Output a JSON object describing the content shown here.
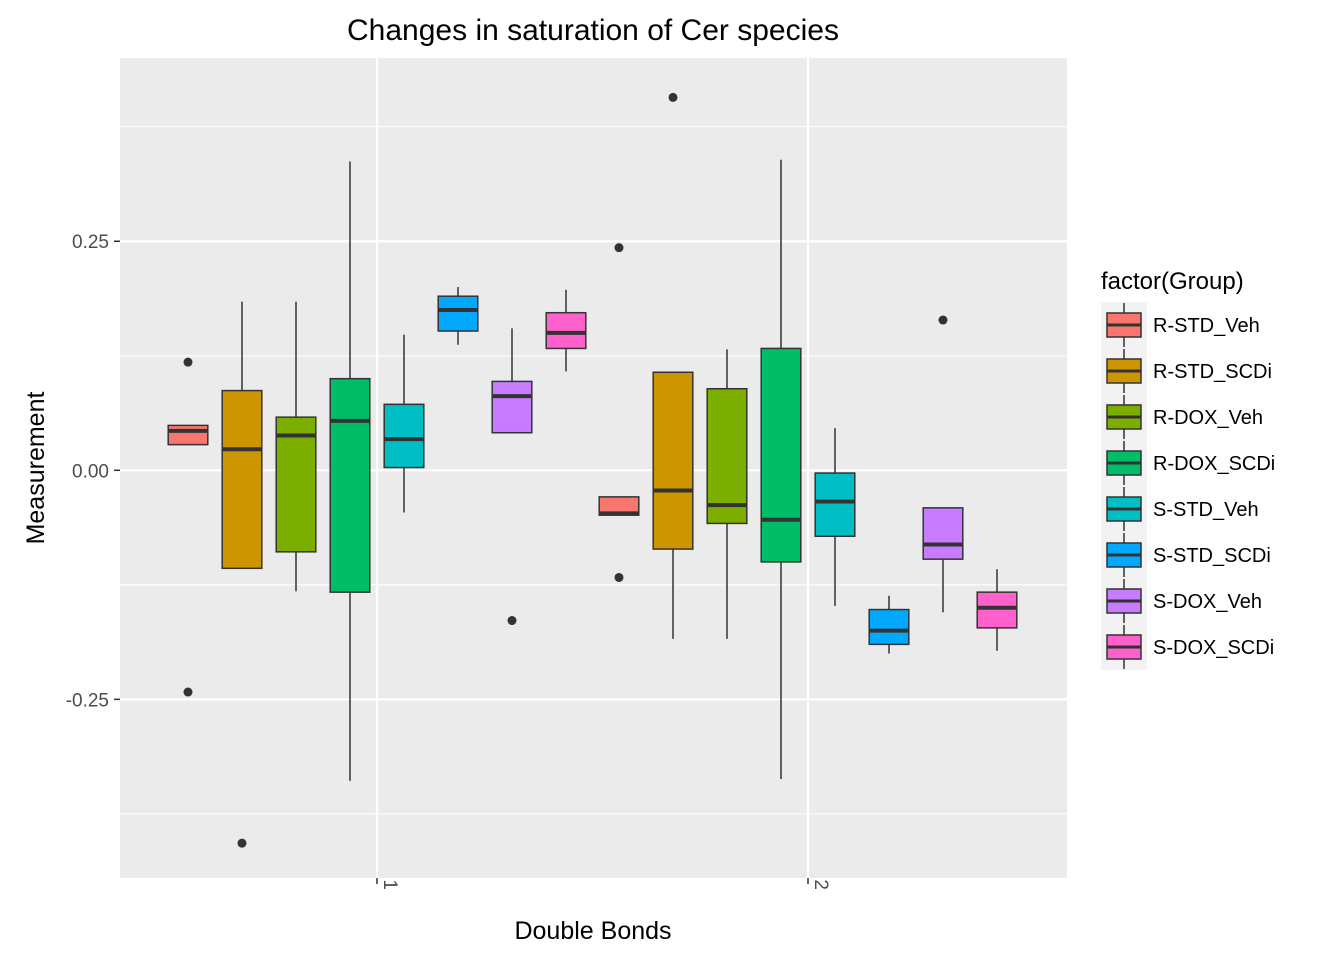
{
  "chart_data": {
    "type": "boxplot",
    "title": "Changes in saturation of Cer species",
    "xlabel": "Double Bonds",
    "ylabel": "Measurement",
    "categories": [
      "1",
      "2"
    ],
    "ylim": [
      -0.445,
      0.45
    ],
    "yticks": [
      -0.25,
      0.0,
      0.25
    ],
    "ytick_labels": [
      "-0.25",
      "0.00",
      "0.25"
    ],
    "grid": true,
    "legend_position": "right",
    "legend_title": "factor(Group)",
    "series": [
      {
        "name": "R-STD_Veh",
        "color": "#F8766D",
        "boxes": [
          {
            "category": "1",
            "whisker_low": 0.028,
            "q1": 0.028,
            "median": 0.043,
            "q3": 0.049,
            "whisker_high": 0.049,
            "outliers": [
              0.118,
              -0.242
            ]
          },
          {
            "category": "2",
            "whisker_low": -0.049,
            "q1": -0.049,
            "median": -0.047,
            "q3": -0.029,
            "whisker_high": -0.029,
            "outliers": [
              0.243,
              -0.117
            ]
          }
        ]
      },
      {
        "name": "R-STD_SCDi",
        "color": "#CD9600",
        "boxes": [
          {
            "category": "1",
            "whisker_low": -0.107,
            "q1": -0.107,
            "median": 0.023,
            "q3": 0.087,
            "whisker_high": 0.184,
            "outliers": [
              -0.407
            ]
          },
          {
            "category": "2",
            "whisker_low": -0.184,
            "q1": -0.086,
            "median": -0.022,
            "q3": 0.107,
            "whisker_high": 0.107,
            "outliers": [
              0.407
            ]
          }
        ]
      },
      {
        "name": "R-DOX_Veh",
        "color": "#7CAE00",
        "boxes": [
          {
            "category": "1",
            "whisker_low": -0.132,
            "q1": -0.089,
            "median": 0.038,
            "q3": 0.058,
            "whisker_high": 0.184,
            "outliers": []
          },
          {
            "category": "2",
            "whisker_low": -0.184,
            "q1": -0.058,
            "median": -0.038,
            "q3": 0.089,
            "whisker_high": 0.132,
            "outliers": []
          }
        ]
      },
      {
        "name": "R-DOX_SCDi",
        "color": "#00BE67",
        "boxes": [
          {
            "category": "1",
            "whisker_low": -0.339,
            "q1": -0.133,
            "median": 0.054,
            "q3": 0.1,
            "whisker_high": 0.337,
            "outliers": []
          },
          {
            "category": "2",
            "whisker_low": -0.337,
            "q1": -0.1,
            "median": -0.054,
            "q3": 0.133,
            "whisker_high": 0.339,
            "outliers": []
          }
        ]
      },
      {
        "name": "S-STD_Veh",
        "color": "#00BFC4",
        "boxes": [
          {
            "category": "1",
            "whisker_low": -0.046,
            "q1": 0.003,
            "median": 0.034,
            "q3": 0.072,
            "whisker_high": 0.148,
            "outliers": []
          },
          {
            "category": "2",
            "whisker_low": -0.148,
            "q1": -0.072,
            "median": -0.034,
            "q3": -0.003,
            "whisker_high": 0.046,
            "outliers": []
          }
        ]
      },
      {
        "name": "S-STD_SCDi",
        "color": "#00A9FF",
        "boxes": [
          {
            "category": "1",
            "whisker_low": 0.137,
            "q1": 0.152,
            "median": 0.175,
            "q3": 0.19,
            "whisker_high": 0.2,
            "outliers": []
          },
          {
            "category": "2",
            "whisker_low": -0.2,
            "q1": -0.19,
            "median": -0.175,
            "q3": -0.152,
            "whisker_high": -0.137,
            "outliers": []
          }
        ]
      },
      {
        "name": "S-DOX_Veh",
        "color": "#C77CFF",
        "boxes": [
          {
            "category": "1",
            "whisker_low": 0.041,
            "q1": 0.041,
            "median": 0.081,
            "q3": 0.097,
            "whisker_high": 0.155,
            "outliers": [
              -0.164
            ]
          },
          {
            "category": "2",
            "whisker_low": -0.155,
            "q1": -0.097,
            "median": -0.081,
            "q3": -0.041,
            "whisker_high": -0.041,
            "outliers": [
              0.164
            ]
          }
        ]
      },
      {
        "name": "S-DOX_SCDi",
        "color": "#FF61CC",
        "boxes": [
          {
            "category": "1",
            "whisker_low": 0.108,
            "q1": 0.133,
            "median": 0.15,
            "q3": 0.172,
            "whisker_high": 0.197,
            "outliers": []
          },
          {
            "category": "2",
            "whisker_low": -0.197,
            "q1": -0.172,
            "median": -0.15,
            "q3": -0.133,
            "whisker_high": -0.108,
            "outliers": []
          }
        ]
      }
    ]
  }
}
